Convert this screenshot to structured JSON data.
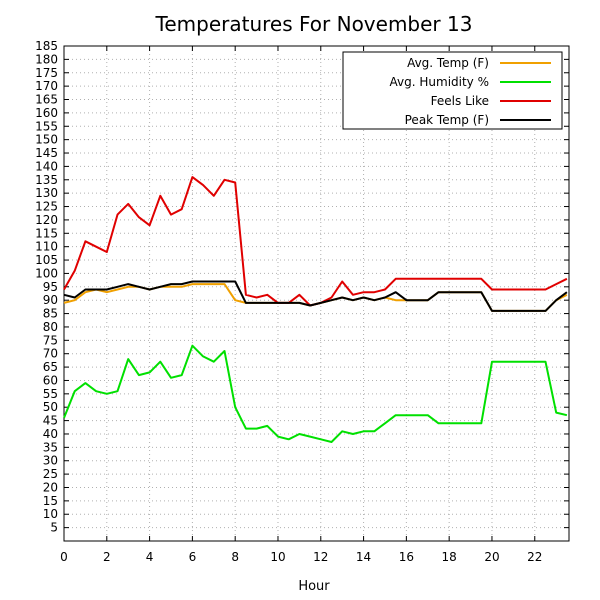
{
  "chart_data": {
    "type": "line",
    "title": "Temperatures For November 13",
    "xlabel": "Hour",
    "ylabel": "",
    "xlim": [
      0,
      23.6
    ],
    "ylim": [
      0,
      185
    ],
    "x_ticks": [
      "0",
      "2",
      "4",
      "6",
      "8",
      "10",
      "12",
      "14",
      "16",
      "18",
      "20",
      "22"
    ],
    "y_ticks": [
      "5",
      "10",
      "15",
      "20",
      "25",
      "30",
      "35",
      "40",
      "45",
      "50",
      "55",
      "60",
      "65",
      "70",
      "75",
      "80",
      "85",
      "90",
      "95",
      "100",
      "105",
      "110",
      "115",
      "120",
      "125",
      "130",
      "135",
      "140",
      "145",
      "150",
      "155",
      "160",
      "165",
      "170",
      "175",
      "180",
      "185"
    ],
    "grid": true,
    "legend_position": "top-right",
    "series": [
      {
        "name": "Avg. Temp (F)",
        "color": "#f0a000",
        "x": [
          0,
          0.5,
          1,
          1.5,
          2,
          2.5,
          3,
          3.5,
          4,
          4.5,
          5,
          5.5,
          6,
          6.5,
          7,
          7.5,
          8,
          8.5,
          9,
          9.5,
          10,
          10.5,
          11,
          11.5,
          12,
          12.5,
          13,
          13.5,
          14,
          14.5,
          15,
          15.5,
          16,
          16.5,
          17,
          17.5,
          18,
          18.5,
          19,
          19.5,
          20,
          20.5,
          21,
          21.5,
          22,
          22.5,
          23,
          23.5
        ],
        "y": [
          89,
          90,
          93,
          94,
          93,
          94,
          95,
          95,
          94,
          95,
          95,
          95,
          96,
          96,
          96,
          96,
          90,
          89,
          89,
          89,
          89,
          89,
          89,
          88,
          89,
          90,
          91,
          90,
          91,
          90,
          91,
          90,
          90,
          90,
          90,
          93,
          93,
          93,
          93,
          93,
          86,
          86,
          86,
          86,
          86,
          86,
          90,
          92
        ]
      },
      {
        "name": "Avg. Humidity %",
        "color": "#00e000",
        "x": [
          0,
          0.5,
          1,
          1.5,
          2,
          2.5,
          3,
          3.5,
          4,
          4.5,
          5,
          5.5,
          6,
          6.5,
          7,
          7.5,
          8,
          8.5,
          9,
          9.5,
          10,
          10.5,
          11,
          11.5,
          12,
          12.5,
          13,
          13.5,
          14,
          14.5,
          15,
          15.5,
          16,
          16.5,
          17,
          17.5,
          18,
          18.5,
          19,
          19.5,
          20,
          20.5,
          21,
          21.5,
          22,
          22.5,
          23,
          23.5
        ],
        "y": [
          46,
          56,
          59,
          56,
          55,
          56,
          68,
          62,
          63,
          67,
          61,
          62,
          73,
          69,
          67,
          71,
          50,
          42,
          42,
          43,
          39,
          38,
          40,
          39,
          38,
          37,
          41,
          40,
          41,
          41,
          44,
          47,
          47,
          47,
          47,
          44,
          44,
          44,
          44,
          44,
          67,
          67,
          67,
          67,
          67,
          67,
          48,
          47
        ]
      },
      {
        "name": "Feels Like",
        "color": "#e00000",
        "x": [
          0,
          0.5,
          1,
          1.5,
          2,
          2.5,
          3,
          3.5,
          4,
          4.5,
          5,
          5.5,
          6,
          6.5,
          7,
          7.5,
          8,
          8.5,
          9,
          9.5,
          10,
          10.5,
          11,
          11.5,
          12,
          12.5,
          13,
          13.5,
          14,
          14.5,
          15,
          15.5,
          16,
          16.5,
          17,
          17.5,
          18,
          18.5,
          19,
          19.5,
          20,
          20.5,
          21,
          21.5,
          22,
          22.5,
          23,
          23.5
        ],
        "y": [
          94,
          101,
          112,
          110,
          108,
          122,
          126,
          121,
          118,
          129,
          122,
          124,
          136,
          133,
          129,
          135,
          134,
          92,
          91,
          92,
          89,
          89,
          92,
          88,
          89,
          91,
          97,
          92,
          93,
          93,
          94,
          98,
          98,
          98,
          98,
          98,
          98,
          98,
          98,
          98,
          94,
          94,
          94,
          94,
          94,
          94,
          96,
          98
        ]
      },
      {
        "name": "Peak Temp (F)",
        "color": "#000000",
        "x": [
          0,
          0.5,
          1,
          1.5,
          2,
          2.5,
          3,
          3.5,
          4,
          4.5,
          5,
          5.5,
          6,
          6.5,
          7,
          7.5,
          8,
          8.5,
          9,
          9.5,
          10,
          10.5,
          11,
          11.5,
          12,
          12.5,
          13,
          13.5,
          14,
          14.5,
          15,
          15.5,
          16,
          16.5,
          17,
          17.5,
          18,
          18.5,
          19,
          19.5,
          20,
          20.5,
          21,
          21.5,
          22,
          22.5,
          23,
          23.5
        ],
        "y": [
          92,
          91,
          94,
          94,
          94,
          95,
          96,
          95,
          94,
          95,
          96,
          96,
          97,
          97,
          97,
          97,
          97,
          89,
          89,
          89,
          89,
          89,
          89,
          88,
          89,
          90,
          91,
          90,
          91,
          90,
          91,
          93,
          90,
          90,
          90,
          93,
          93,
          93,
          93,
          93,
          86,
          86,
          86,
          86,
          86,
          86,
          90,
          93
        ]
      }
    ]
  }
}
